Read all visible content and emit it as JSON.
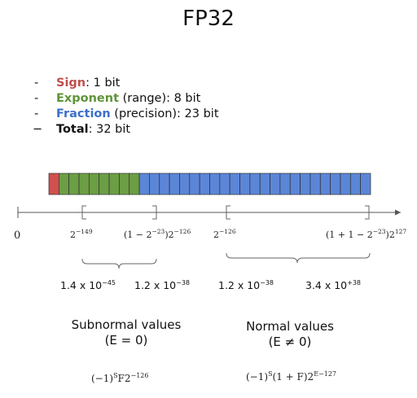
{
  "title": "FP32",
  "legend": [
    {
      "term": "Sign",
      "rest": ": 1 bit",
      "color": "#c0504d"
    },
    {
      "term": "Exponent",
      "rest": " (range): 8 bit",
      "color": "#5f9439"
    },
    {
      "term": "Fraction",
      "rest": " (precision): 23 bit",
      "color": "#3d6fc9"
    },
    {
      "term": "Total",
      "rest": ": 32 bit",
      "color": "#111111"
    }
  ],
  "bits": {
    "sign": 1,
    "exponent": 8,
    "fraction": 23,
    "colors": {
      "sign": "#d2504e",
      "exponent": "#6c9e45",
      "fraction": "#5b86d8"
    }
  },
  "axis": {
    "zero": "0"
  },
  "ticks": {
    "sub_min": {
      "base": "2",
      "exp": "−149"
    },
    "sub_max": {
      "pre": "(1 − 2",
      "exp1": "−23",
      "mid": ")2",
      "exp2": "−126"
    },
    "norm_min": {
      "base": "2",
      "exp": "−126"
    },
    "norm_max": {
      "pre": "(1 + 1 − 2",
      "exp1": "−23",
      "mid": ")2",
      "exp2": "127"
    }
  },
  "decimal_values": [
    {
      "mant": "1.4 x 10",
      "exp": "−45"
    },
    {
      "mant": "1.2 x 10",
      "exp": "−38"
    },
    {
      "mant": "1.2 x 10",
      "exp": "−38"
    },
    {
      "mant": "3.4 x 10",
      "exp": "+38"
    }
  ],
  "groups": {
    "subnormal": {
      "name": "Subnormal values",
      "cond": "(E = 0)"
    },
    "normal": {
      "name": "Normal values",
      "cond": "(E ≠ 0)"
    }
  },
  "formulas": {
    "subnormal": {
      "pre": "(−1)",
      "exp1": "S",
      "mid": "F2",
      "exp2": "−126"
    },
    "normal": {
      "pre": "(−1)",
      "exp1": "S",
      "mid": "(1 + F)2",
      "exp2": "E−127"
    }
  }
}
